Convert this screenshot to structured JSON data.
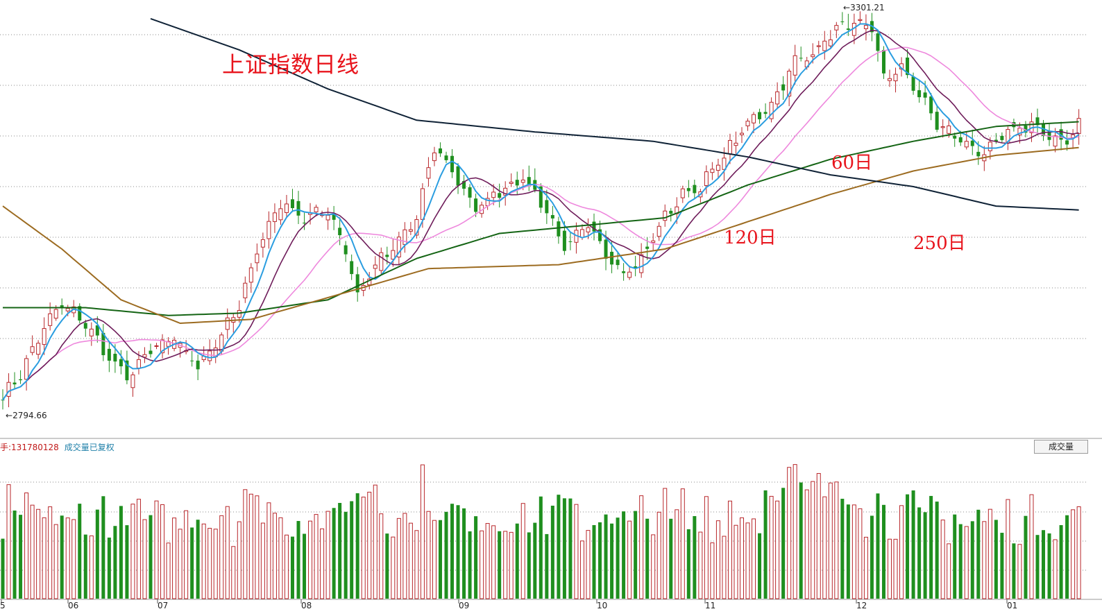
{
  "title": "上证指数日线",
  "ma_labels": {
    "ma60": "60日",
    "ma120": "120日",
    "ma250": "250日"
  },
  "volume_info": {
    "label_fragment": "手:",
    "value": "131780128",
    "note": "成交量已复权"
  },
  "volume_tab": "成交量",
  "annotations": {
    "high": "3301.21",
    "low": "2794.66"
  },
  "months": [
    "5",
    "06",
    "07",
    "08",
    "09",
    "10",
    "11",
    "12",
    "01"
  ],
  "colors": {
    "up": "#b8262a",
    "down": "#1f8f1f",
    "ma5": "#2a9de0",
    "ma10": "#6e1c5a",
    "ma20": "#ee88dd",
    "ma60": "#146414",
    "ma120": "#9c6b20",
    "ma250": "#0f2236",
    "title": "#e8141c"
  },
  "chart_data": {
    "type": "candlestick",
    "title": "上证指数日线",
    "price_annotations": {
      "high": 3301.21,
      "low": 2794.66
    },
    "series": [
      {
        "name": "60日",
        "note": "60-day moving average"
      },
      {
        "name": "120日",
        "note": "120-day moving average"
      },
      {
        "name": "250日",
        "note": "250-day moving average"
      }
    ],
    "x_ticks": [
      "5",
      "06",
      "07",
      "08",
      "09",
      "10",
      "11",
      "12",
      "01"
    ],
    "volume_panel": {
      "label": "成交量",
      "latest_volume": 131780128
    },
    "anchors": [
      [
        0,
        2810
      ],
      [
        3,
        2840
      ],
      [
        7,
        2900
      ],
      [
        10,
        2930
      ],
      [
        14,
        2905
      ],
      [
        18,
        2860
      ],
      [
        21,
        2835
      ],
      [
        25,
        2870
      ],
      [
        29,
        2885
      ],
      [
        33,
        2850
      ],
      [
        36,
        2880
      ],
      [
        40,
        2925
      ],
      [
        43,
        3000
      ],
      [
        47,
        3060
      ],
      [
        51,
        3040
      ],
      [
        55,
        3050
      ],
      [
        58,
        3000
      ],
      [
        60,
        2940
      ],
      [
        63,
        2980
      ],
      [
        66,
        3000
      ],
      [
        70,
        3040
      ],
      [
        73,
        3130
      ],
      [
        76,
        3100
      ],
      [
        80,
        3050
      ],
      [
        84,
        3075
      ],
      [
        88,
        3090
      ],
      [
        92,
        3050
      ],
      [
        95,
        3000
      ],
      [
        99,
        3030
      ],
      [
        102,
        2995
      ],
      [
        105,
        2970
      ],
      [
        108,
        2985
      ],
      [
        111,
        3030
      ],
      [
        115,
        3070
      ],
      [
        118,
        3080
      ],
      [
        122,
        3120
      ],
      [
        126,
        3160
      ],
      [
        130,
        3185
      ],
      [
        134,
        3240
      ],
      [
        137,
        3250
      ],
      [
        140,
        3275
      ],
      [
        143,
        3290
      ],
      [
        147,
        3280
      ],
      [
        149,
        3220
      ],
      [
        152,
        3230
      ],
      [
        154,
        3210
      ],
      [
        158,
        3160
      ],
      [
        162,
        3140
      ],
      [
        166,
        3120
      ],
      [
        170,
        3150
      ],
      [
        174,
        3160
      ],
      [
        177,
        3140
      ],
      [
        180,
        3140
      ],
      [
        182,
        3160
      ]
    ],
    "ma60_anchors": [
      [
        0,
        2925
      ],
      [
        14,
        2925
      ],
      [
        28,
        2915
      ],
      [
        40,
        2918
      ],
      [
        55,
        2935
      ],
      [
        70,
        2988
      ],
      [
        84,
        3020
      ],
      [
        98,
        3030
      ],
      [
        112,
        3040
      ],
      [
        126,
        3082
      ],
      [
        140,
        3115
      ],
      [
        154,
        3138
      ],
      [
        168,
        3157
      ],
      [
        182,
        3163
      ]
    ],
    "ma120_anchors": [
      [
        0,
        3055
      ],
      [
        10,
        3000
      ],
      [
        20,
        2935
      ],
      [
        30,
        2905
      ],
      [
        42,
        2910
      ],
      [
        56,
        2940
      ],
      [
        72,
        2975
      ],
      [
        94,
        2980
      ],
      [
        112,
        3000
      ],
      [
        126,
        3035
      ],
      [
        140,
        3070
      ],
      [
        154,
        3100
      ],
      [
        168,
        3120
      ],
      [
        182,
        3130
      ]
    ],
    "ma250_anchors": [
      [
        25,
        3295
      ],
      [
        40,
        3255
      ],
      [
        55,
        3205
      ],
      [
        70,
        3165
      ],
      [
        90,
        3150
      ],
      [
        110,
        3138
      ],
      [
        126,
        3118
      ],
      [
        140,
        3095
      ],
      [
        154,
        3080
      ],
      [
        168,
        3055
      ],
      [
        182,
        3050
      ]
    ]
  }
}
